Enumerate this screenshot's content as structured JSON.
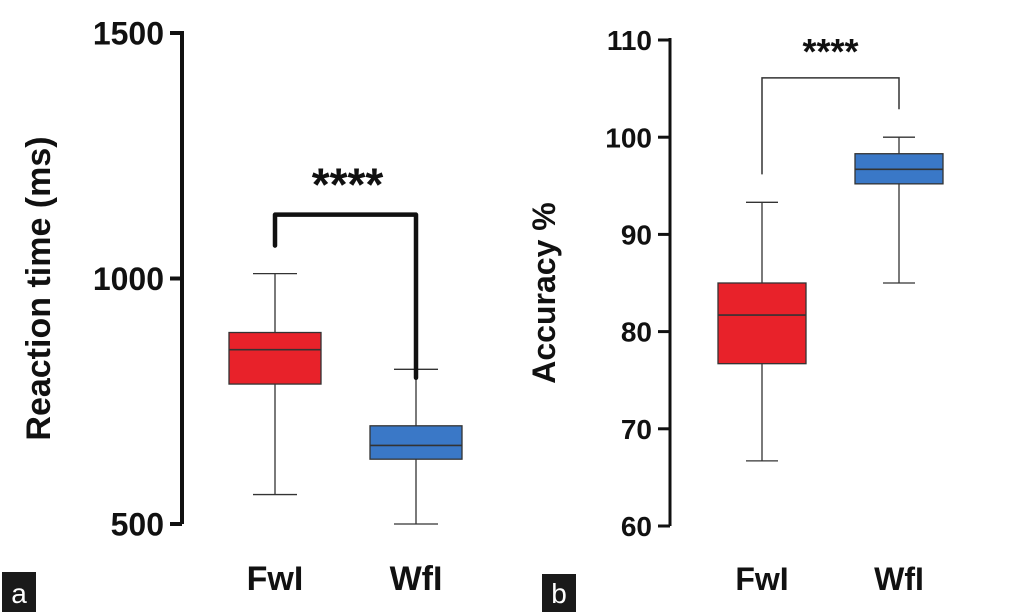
{
  "panels": [
    {
      "label": "a"
    },
    {
      "label": "b"
    }
  ],
  "chart_data": [
    {
      "type": "box",
      "panel": "a",
      "ylabel": "Reaction time (ms)",
      "xlabel": "",
      "ylim": [
        500,
        1500
      ],
      "yticks": [
        500,
        1000,
        1500
      ],
      "categories": [
        "FwI",
        "WfI"
      ],
      "boxes": [
        {
          "category": "FwI",
          "color": "#e8222a",
          "min": 560,
          "q1": 785,
          "median": 855,
          "q3": 890,
          "max": 1010
        },
        {
          "category": "WfI",
          "color": "#3a78c7",
          "min": 500,
          "q1": 632,
          "median": 660,
          "q3": 700,
          "max": 815
        }
      ],
      "significance": {
        "label": "****",
        "between": [
          "FwI",
          "WfI"
        ],
        "y": 1130
      },
      "grid": false
    },
    {
      "type": "box",
      "panel": "b",
      "ylabel": "Accuracy %",
      "xlabel": "",
      "ylim": [
        60,
        110
      ],
      "yticks": [
        60,
        70,
        80,
        90,
        100,
        110
      ],
      "categories": [
        "FwI",
        "WfI"
      ],
      "boxes": [
        {
          "category": "FwI",
          "color": "#e8222a",
          "min": 66.7,
          "q1": 76.7,
          "median": 81.7,
          "q3": 85.0,
          "max": 93.3
        },
        {
          "category": "WfI",
          "color": "#3a78c7",
          "min": 85.0,
          "q1": 95.2,
          "median": 96.7,
          "q3": 98.3,
          "max": 100.0
        }
      ],
      "significance": {
        "label": "****",
        "between": [
          "FwI",
          "WfI"
        ],
        "y": 106.1
      },
      "grid": false
    }
  ]
}
